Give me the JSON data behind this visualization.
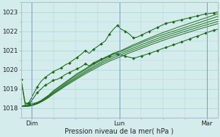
{
  "xlabel": "Pression niveau de la mer( hPa )",
  "bg_color": "#d4ecec",
  "grid_color": "#b0d4d4",
  "line_color": "#1a6b1a",
  "marker_color": "#1a6b1a",
  "ylim": [
    1017.5,
    1023.5
  ],
  "xlim": [
    0.0,
    1.0
  ],
  "yticks": [
    1018,
    1019,
    1020,
    1021,
    1022,
    1023
  ],
  "xtick_positions": [
    0.055,
    0.5,
    0.945
  ],
  "xtick_labels": [
    "Dim",
    "Lun",
    "Mar"
  ],
  "vline_positions": [
    0.055,
    0.5,
    0.945
  ],
  "n_points": 50,
  "ensemble_lines": [
    [
      1018.1,
      1018.15,
      1018.2,
      1018.25,
      1018.3,
      1018.4,
      1018.55,
      1018.7,
      1018.9,
      1019.05,
      1019.2,
      1019.35,
      1019.5,
      1019.65,
      1019.8,
      1019.92,
      1020.05,
      1020.18,
      1020.3,
      1020.42,
      1020.54,
      1020.65,
      1020.75,
      1020.85,
      1020.93,
      1021.0,
      1021.1,
      1021.2,
      1021.3,
      1021.38,
      1021.47,
      1021.56,
      1021.65,
      1021.73,
      1021.82,
      1021.9,
      1021.98,
      1022.05,
      1022.12,
      1022.2,
      1022.27,
      1022.34,
      1022.41,
      1022.48,
      1022.55,
      1022.62,
      1022.69,
      1022.76,
      1022.83,
      1022.9
    ],
    [
      1018.1,
      1018.12,
      1018.15,
      1018.2,
      1018.28,
      1018.38,
      1018.52,
      1018.67,
      1018.85,
      1019.0,
      1019.15,
      1019.3,
      1019.45,
      1019.6,
      1019.74,
      1019.87,
      1020.0,
      1020.13,
      1020.25,
      1020.37,
      1020.49,
      1020.6,
      1020.7,
      1020.8,
      1020.88,
      1020.96,
      1021.05,
      1021.14,
      1021.23,
      1021.31,
      1021.4,
      1021.49,
      1021.57,
      1021.65,
      1021.73,
      1021.8,
      1021.87,
      1021.94,
      1022.0,
      1022.07,
      1022.14,
      1022.21,
      1022.28,
      1022.35,
      1022.42,
      1022.49,
      1022.56,
      1022.63,
      1022.7,
      1022.77
    ],
    [
      1018.1,
      1018.11,
      1018.13,
      1018.18,
      1018.26,
      1018.36,
      1018.49,
      1018.63,
      1018.8,
      1018.94,
      1019.09,
      1019.24,
      1019.38,
      1019.52,
      1019.66,
      1019.79,
      1019.92,
      1020.04,
      1020.16,
      1020.28,
      1020.4,
      1020.51,
      1020.61,
      1020.71,
      1020.79,
      1020.87,
      1020.96,
      1021.05,
      1021.13,
      1021.21,
      1021.3,
      1021.38,
      1021.46,
      1021.54,
      1021.62,
      1021.7,
      1021.77,
      1021.84,
      1021.9,
      1021.97,
      1022.04,
      1022.11,
      1022.17,
      1022.24,
      1022.3,
      1022.37,
      1022.43,
      1022.5,
      1022.56,
      1022.62
    ],
    [
      1018.1,
      1018.1,
      1018.12,
      1018.17,
      1018.24,
      1018.34,
      1018.47,
      1018.6,
      1018.76,
      1018.9,
      1019.04,
      1019.19,
      1019.33,
      1019.46,
      1019.59,
      1019.72,
      1019.85,
      1019.97,
      1020.09,
      1020.2,
      1020.32,
      1020.43,
      1020.52,
      1020.62,
      1020.7,
      1020.78,
      1020.87,
      1020.96,
      1021.04,
      1021.12,
      1021.2,
      1021.28,
      1021.37,
      1021.45,
      1021.52,
      1021.6,
      1021.67,
      1021.74,
      1021.8,
      1021.87,
      1021.94,
      1022.0,
      1022.07,
      1022.13,
      1022.2,
      1022.26,
      1022.32,
      1022.38,
      1022.44,
      1022.5
    ],
    [
      1018.1,
      1018.09,
      1018.1,
      1018.15,
      1018.22,
      1018.32,
      1018.44,
      1018.57,
      1018.73,
      1018.86,
      1019.0,
      1019.14,
      1019.27,
      1019.4,
      1019.53,
      1019.66,
      1019.78,
      1019.9,
      1020.01,
      1020.12,
      1020.24,
      1020.34,
      1020.44,
      1020.53,
      1020.61,
      1020.69,
      1020.78,
      1020.87,
      1020.95,
      1021.03,
      1021.11,
      1021.19,
      1021.27,
      1021.35,
      1021.42,
      1021.5,
      1021.57,
      1021.64,
      1021.7,
      1021.77,
      1021.83,
      1021.9,
      1021.96,
      1022.03,
      1022.09,
      1022.15,
      1022.21,
      1022.27,
      1022.33,
      1022.39
    ]
  ],
  "marked_series1": [
    1019.5,
    1018.3,
    1018.2,
    1018.5,
    1018.8,
    1019.0,
    1019.2,
    1019.3,
    1019.45,
    1019.5,
    1019.6,
    1019.75,
    1019.85,
    1019.95,
    1020.05,
    1020.15,
    1020.3,
    1020.2,
    1020.35,
    1020.45,
    1020.55,
    1020.6,
    1020.7,
    1020.85,
    1020.8,
    1020.75,
    1020.7,
    1020.65,
    1020.6,
    1020.65,
    1020.72,
    1020.78,
    1020.85,
    1020.92,
    1021.0,
    1021.08,
    1021.15,
    1021.22,
    1021.3,
    1021.37,
    1021.45,
    1021.52,
    1021.6,
    1021.68,
    1021.75,
    1021.83,
    1021.9,
    1021.98,
    1022.05,
    1022.1
  ],
  "marked_series2": [
    1019.5,
    1018.2,
    1018.3,
    1018.7,
    1019.1,
    1019.4,
    1019.6,
    1019.75,
    1019.9,
    1020.0,
    1020.1,
    1020.25,
    1020.35,
    1020.5,
    1020.65,
    1020.8,
    1021.0,
    1020.85,
    1021.05,
    1021.2,
    1021.35,
    1021.5,
    1021.85,
    1022.1,
    1022.3,
    1022.1,
    1022.0,
    1021.85,
    1021.65,
    1021.7,
    1021.8,
    1021.9,
    1022.0,
    1022.1,
    1022.2,
    1022.3,
    1022.4,
    1022.45,
    1022.5,
    1022.55,
    1022.6,
    1022.65,
    1022.7,
    1022.75,
    1022.8,
    1022.85,
    1022.9,
    1022.92,
    1022.95,
    1023.0
  ]
}
